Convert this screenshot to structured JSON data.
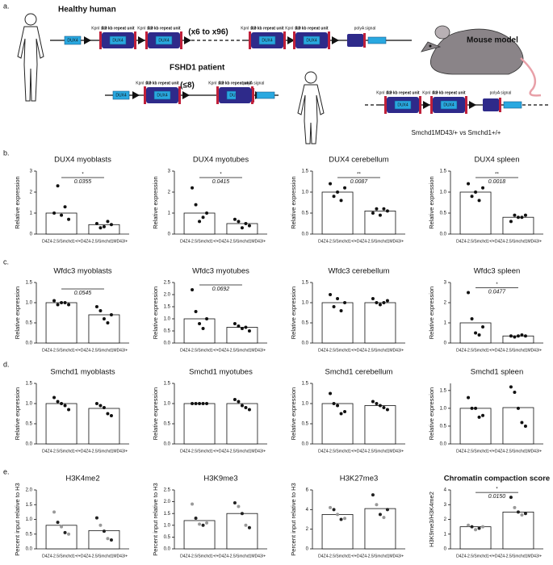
{
  "panel_labels": [
    "a.",
    "b.",
    "c.",
    "d.",
    "e."
  ],
  "diagram": {
    "healthy_label": "Healthy human",
    "patient_label": "FSHD1 patient",
    "mouse_label": "Mouse model",
    "dux4": "DUX4",
    "kpni": "KpnI site",
    "repeat": "3.3 kb repeat unit",
    "copies_healthy": "(x6 to x96)",
    "copies_patient": "(≤8)",
    "polya": "polyA signal",
    "comparison": "Smchd1MD43/+ vs Smchd1+/+"
  },
  "chart_data": [
    {
      "type": "bar",
      "title": "DUX4 myoblasts",
      "ylabel": "Relative expression",
      "categories": [
        "D4Z4-2.5/Smchd1+/+",
        "D4Z4-2.5/Smchd1MD43/+"
      ],
      "values": [
        1.0,
        0.45
      ],
      "points": [
        [
          1.0,
          2.3,
          0.9,
          1.3,
          0.7
        ],
        [
          0.5,
          0.3,
          0.35,
          0.6,
          0.45
        ]
      ],
      "significance": {
        "stars": "*",
        "p": "0.0355"
      },
      "ylim": [
        0,
        3
      ],
      "yticks": [
        0,
        1,
        2,
        3
      ]
    },
    {
      "type": "bar",
      "title": "DUX4 myotubes",
      "ylabel": "Relative expression",
      "categories": [
        "D4Z4-2.5/Smchd1+/+",
        "D4Z4-2.5/Smchd1MD43/+"
      ],
      "values": [
        1.0,
        0.5
      ],
      "points": [
        [
          2.2,
          1.4,
          0.6,
          0.8,
          1.0
        ],
        [
          0.7,
          0.6,
          0.3,
          0.5,
          0.4
        ]
      ],
      "significance": {
        "stars": "*",
        "p": "0.0415"
      },
      "ylim": [
        0,
        3
      ],
      "yticks": [
        0,
        1,
        2,
        3
      ]
    },
    {
      "type": "bar",
      "title": "DUX4 cerebellum",
      "ylabel": "Relative expression",
      "categories": [
        "D4Z4-2.5/Smchd1+/+",
        "D4Z4-2.5/Smchd1MD43/+"
      ],
      "values": [
        1.0,
        0.55
      ],
      "points": [
        [
          1.2,
          0.9,
          1.0,
          0.8,
          1.1
        ],
        [
          0.5,
          0.6,
          0.45,
          0.6,
          0.55
        ]
      ],
      "significance": {
        "stars": "**",
        "p": "0.0087"
      },
      "ylim": [
        0,
        1.5
      ],
      "yticks": [
        {
          "value": 0,
          "label": "0.0"
        },
        0.5,
        {
          "value": 1,
          "label": "1.0"
        },
        1.5
      ]
    },
    {
      "type": "bar",
      "title": "DUX4 spleen",
      "ylabel": "Relative expression",
      "categories": [
        "D4Z4-2.5/Smchd1+/+",
        "D4Z4-2.5/Smchd1MD43/+"
      ],
      "values": [
        1.0,
        0.4
      ],
      "points": [
        [
          1.2,
          0.9,
          1.0,
          0.8,
          1.1
        ],
        [
          0.3,
          0.45,
          0.4,
          0.4,
          0.45
        ]
      ],
      "significance": {
        "stars": "**",
        "p": "0.0018"
      },
      "ylim": [
        0,
        1.5
      ],
      "yticks": [
        {
          "value": 0,
          "label": "0.0"
        },
        0.5,
        {
          "value": 1,
          "label": "1.0"
        },
        1.5
      ]
    },
    {
      "type": "bar",
      "title": "Wfdc3 myoblasts",
      "ylabel": "Relative expression",
      "categories": [
        "D4Z4-2.5/Smchd1+/+",
        "D4Z4-2.5/Smchd1MD43/+"
      ],
      "values": [
        1.0,
        0.7
      ],
      "points": [
        [
          1.05,
          0.95,
          1.0,
          1.0,
          0.95
        ],
        [
          0.9,
          0.8,
          0.6,
          0.5,
          0.7
        ]
      ],
      "significance": {
        "p": "0.0545"
      },
      "ylim": [
        0,
        1.5
      ],
      "yticks": [
        {
          "value": 0,
          "label": "0.0"
        },
        0.5,
        {
          "value": 1,
          "label": "1.0"
        },
        1.5
      ]
    },
    {
      "type": "bar",
      "title": "Wfdc3 myotubes",
      "ylabel": "Relative expression",
      "categories": [
        "D4Z4-2.5/Smchd1+/+",
        "D4Z4-2.5/Smchd1MD43/+"
      ],
      "values": [
        1.0,
        0.65
      ],
      "points": [
        [
          2.2,
          1.3,
          0.8,
          0.6,
          1.0
        ],
        [
          0.8,
          0.7,
          0.6,
          0.65,
          0.5
        ]
      ],
      "significance": {
        "p": "0.0692"
      },
      "ylim": [
        0,
        2.5
      ],
      "yticks": [
        {
          "value": 0,
          "label": "0.0"
        },
        0.5,
        {
          "value": 1,
          "label": "1.0"
        },
        1.5,
        {
          "value": 2,
          "label": "2.0"
        },
        2.5
      ]
    },
    {
      "type": "bar",
      "title": "Wfdc3 cerebellum",
      "ylabel": "Relative expression",
      "categories": [
        "D4Z4-2.5/Smchd1+/+",
        "D4Z4-2.5/Smchd1MD43/+"
      ],
      "values": [
        1.0,
        1.0
      ],
      "points": [
        [
          1.2,
          0.9,
          1.1,
          0.8,
          1.0
        ],
        [
          1.1,
          1.0,
          0.95,
          1.0,
          1.05
        ]
      ],
      "ylim": [
        0,
        1.5
      ],
      "yticks": [
        {
          "value": 0,
          "label": "0.0"
        },
        0.5,
        {
          "value": 1,
          "label": "1.0"
        },
        1.5
      ]
    },
    {
      "type": "bar",
      "title": "Wfdc3 spleen",
      "ylabel": "Relative expression",
      "categories": [
        "D4Z4-2.5/Smchd1+/+",
        "D4Z4-2.5/Smchd1MD43/+"
      ],
      "values": [
        1.0,
        0.35
      ],
      "points": [
        [
          2.5,
          1.2,
          0.5,
          0.4,
          0.8
        ],
        [
          0.35,
          0.3,
          0.35,
          0.4,
          0.35
        ]
      ],
      "significance": {
        "stars": "*",
        "p": "0.0477"
      },
      "ylim": [
        0,
        3
      ],
      "yticks": [
        0,
        1,
        2,
        3
      ]
    },
    {
      "type": "bar",
      "title": "Smchd1 myoblasts",
      "ylabel": "Relative expression",
      "categories": [
        "D4Z4-2.5/Smchd1+/+",
        "D4Z4-2.5/Smchd1MD43/+"
      ],
      "values": [
        1.0,
        0.88
      ],
      "points": [
        [
          1.15,
          1.05,
          1.0,
          0.95,
          0.85
        ],
        [
          1.0,
          0.95,
          0.9,
          0.75,
          0.7
        ]
      ],
      "ylim": [
        0,
        1.5
      ],
      "yticks": [
        {
          "value": 0,
          "label": "0.0"
        },
        0.5,
        {
          "value": 1,
          "label": "1.0"
        },
        1.5
      ]
    },
    {
      "type": "bar",
      "title": "Smchd1 myotubes",
      "ylabel": "Relative expression",
      "categories": [
        "D4Z4-2.5/Smchd1+/+",
        "D4Z4-2.5/Smchd1MD43/+"
      ],
      "values": [
        1.0,
        1.0
      ],
      "points": [
        [
          1.0,
          1.0,
          1.0,
          1.0,
          1.0
        ],
        [
          1.1,
          1.05,
          0.95,
          0.9,
          0.85
        ]
      ],
      "ylim": [
        0,
        1.5
      ],
      "yticks": [
        {
          "value": 0,
          "label": "0.0"
        },
        0.5,
        {
          "value": 1,
          "label": "1.0"
        },
        1.5
      ]
    },
    {
      "type": "bar",
      "title": "Smchd1 cerebellum",
      "ylabel": "Relative expression",
      "categories": [
        "D4Z4-2.5/Smchd1+/+",
        "D4Z4-2.5/Smchd1MD43/+"
      ],
      "values": [
        1.0,
        0.95
      ],
      "points": [
        [
          1.25,
          1.0,
          0.95,
          0.75,
          0.8
        ],
        [
          1.05,
          1.0,
          0.95,
          0.9,
          0.85
        ]
      ],
      "ylim": [
        0,
        1.5
      ],
      "yticks": [
        {
          "value": 0,
          "label": "0.0"
        },
        0.5,
        {
          "value": 1,
          "label": "1.0"
        },
        1.5
      ]
    },
    {
      "type": "bar",
      "title": "Smchd1 spleen",
      "ylabel": "Relative expression",
      "categories": [
        "D4Z4-2.5/Smchd1+/+",
        "D4Z4-2.5/Smchd1MD43/+"
      ],
      "values": [
        1.0,
        1.02
      ],
      "points": [
        [
          1.3,
          1.0,
          1.0,
          0.75,
          0.8
        ],
        [
          1.6,
          1.45,
          1.0,
          0.6,
          0.5
        ]
      ],
      "ylim": [
        0,
        1.7
      ],
      "yticks": [
        {
          "value": 0,
          "label": "0.0"
        },
        0.5,
        {
          "value": 1,
          "label": "1.0"
        },
        1.5
      ]
    },
    {
      "type": "bar",
      "title": "H3K4me2",
      "ylabel": "Percent input relative to H3",
      "categories": [
        "D4Z4-2.5/Smchd1+/+",
        "D4Z4-2.5/Smchd1MD43/+"
      ],
      "values": [
        0.8,
        0.62
      ],
      "points": [
        [
          1.25,
          0.9,
          0.75,
          0.55,
          0.5
        ],
        [
          1.05,
          0.8,
          0.6,
          0.35,
          0.3
        ]
      ],
      "point_colors": [
        [
          "#999999",
          "#222222",
          "#999999",
          "#222222",
          "#999999"
        ],
        [
          "#222222",
          "#999999",
          "#222222",
          "#999999",
          "#222222"
        ]
      ],
      "ylim": [
        0,
        2
      ],
      "yticks": [
        {
          "value": 0,
          "label": "0.0"
        },
        0.5,
        {
          "value": 1,
          "label": "1.0"
        },
        1.5,
        {
          "value": 2,
          "label": "2.0"
        }
      ]
    },
    {
      "type": "bar",
      "title": "H3K9me3",
      "ylabel": "Percent input relative to H3",
      "categories": [
        "D4Z4-2.5/Smchd1+/+",
        "D4Z4-2.5/Smchd1MD43/+"
      ],
      "values": [
        1.2,
        1.5
      ],
      "points": [
        [
          1.9,
          1.3,
          1.05,
          1.0,
          1.1
        ],
        [
          1.95,
          1.8,
          1.5,
          1.0,
          0.9
        ]
      ],
      "point_colors": [
        [
          "#999999",
          "#222222",
          "#999999",
          "#222222",
          "#999999"
        ],
        [
          "#222222",
          "#999999",
          "#222222",
          "#999999",
          "#222222"
        ]
      ],
      "ylim": [
        0,
        2.5
      ],
      "yticks": [
        {
          "value": 0,
          "label": "0.0"
        },
        0.5,
        {
          "value": 1,
          "label": "1.0"
        },
        1.5,
        {
          "value": 2,
          "label": "2.0"
        },
        2.5
      ]
    },
    {
      "type": "bar",
      "title": "H3K27me3",
      "ylabel": "Percent input relative to H3",
      "categories": [
        "D4Z4-2.5/Smchd1+/+",
        "D4Z4-2.5/Smchd1MD43/+"
      ],
      "values": [
        3.5,
        4.1
      ],
      "points": [
        [
          4.2,
          4.0,
          3.5,
          3.0,
          3.1
        ],
        [
          5.5,
          4.5,
          3.5,
          3.2,
          4.0
        ]
      ],
      "point_colors": [
        [
          "#999999",
          "#222222",
          "#999999",
          "#222222",
          "#999999"
        ],
        [
          "#222222",
          "#999999",
          "#222222",
          "#999999",
          "#222222"
        ]
      ],
      "ylim": [
        0,
        6
      ],
      "yticks": [
        0,
        2,
        4,
        6
      ]
    },
    {
      "type": "bar",
      "title": "Chromatin compaction score",
      "ylabel": "H3K9me3/H3K4me2",
      "categories": [
        "D4Z4-2.5/Smchd1+/+",
        "D4Z4-2.5/Smchd1MD43/+"
      ],
      "values": [
        1.5,
        2.5
      ],
      "points": [
        [
          1.6,
          1.5,
          1.3,
          1.4,
          1.5
        ],
        [
          3.5,
          2.8,
          2.5,
          2.3,
          2.4
        ]
      ],
      "point_colors": [
        [
          "#999999",
          "#222222",
          "#999999",
          "#222222",
          "#999999"
        ],
        [
          "#222222",
          "#999999",
          "#222222",
          "#999999",
          "#222222"
        ]
      ],
      "significance": {
        "stars": "*",
        "p": "0.0150"
      },
      "ylim": [
        0,
        4
      ],
      "yticks": [
        0,
        1,
        2,
        3,
        4
      ]
    }
  ]
}
